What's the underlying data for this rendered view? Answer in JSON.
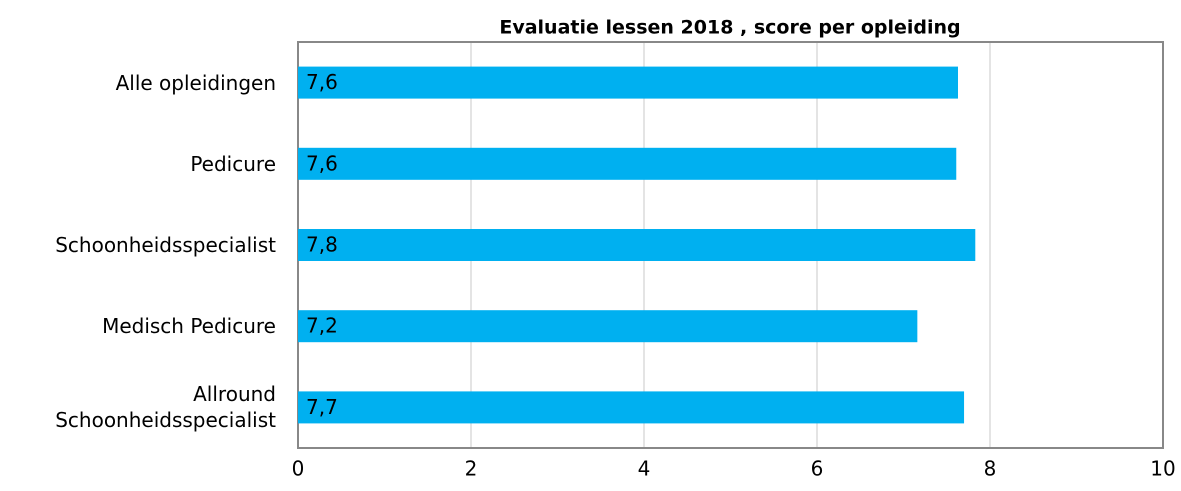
{
  "chart_data": {
    "type": "barh",
    "title": "Evaluatie lessen 2018 , score per  opleiding",
    "categories": [
      "Alle opleidingen",
      "Pedicure",
      "Schoonheidsspecialist",
      "Medisch Pedicure",
      "Allround Schoonheidsspecialist"
    ],
    "values": [
      7.63,
      7.61,
      7.83,
      7.16,
      7.7
    ],
    "value_labels": [
      "7,6",
      "7,6",
      "7,8",
      "7,2",
      "7,7"
    ],
    "color": "#00b0f0",
    "xlim": [
      0,
      10
    ],
    "xticks": [
      0,
      2,
      4,
      6,
      8,
      10
    ],
    "grid": true
  }
}
